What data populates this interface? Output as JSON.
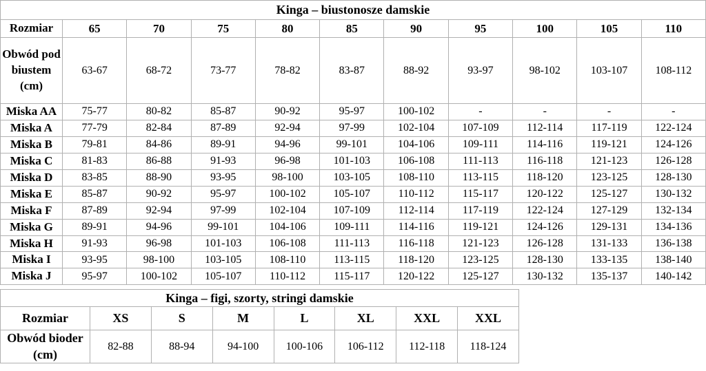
{
  "page": {
    "background_color": "#ffffff",
    "border_color": "#b0b0b0",
    "text_color": "#000000"
  },
  "bras_table": {
    "title": "Kinga – biustonosze damskie",
    "size_row_label": "Rozmiar",
    "sizes": [
      "65",
      "70",
      "75",
      "80",
      "85",
      "90",
      "95",
      "100",
      "105",
      "110"
    ],
    "underbust_label": "Obwód pod biustem (cm)",
    "underbust_values": [
      "63-67",
      "68-72",
      "73-77",
      "78-82",
      "83-87",
      "88-92",
      "93-97",
      "98-102",
      "103-107",
      "108-112"
    ],
    "rows": [
      {
        "label": "Miska AA",
        "values": [
          "75-77",
          "80-82",
          "85-87",
          "90-92",
          "95-97",
          "100-102",
          "-",
          "-",
          "-",
          "-"
        ]
      },
      {
        "label": "Miska A",
        "values": [
          "77-79",
          "82-84",
          "87-89",
          "92-94",
          "97-99",
          "102-104",
          "107-109",
          "112-114",
          "117-119",
          "122-124"
        ]
      },
      {
        "label": "Miska B",
        "values": [
          "79-81",
          "84-86",
          "89-91",
          "94-96",
          "99-101",
          "104-106",
          "109-111",
          "114-116",
          "119-121",
          "124-126"
        ]
      },
      {
        "label": "Miska C",
        "values": [
          "81-83",
          "86-88",
          "91-93",
          "96-98",
          "101-103",
          "106-108",
          "111-113",
          "116-118",
          "121-123",
          "126-128"
        ]
      },
      {
        "label": "Miska D",
        "values": [
          "83-85",
          "88-90",
          "93-95",
          "98-100",
          "103-105",
          "108-110",
          "113-115",
          "118-120",
          "123-125",
          "128-130"
        ]
      },
      {
        "label": "Miska E",
        "values": [
          "85-87",
          "90-92",
          "95-97",
          "100-102",
          "105-107",
          "110-112",
          "115-117",
          "120-122",
          "125-127",
          "130-132"
        ]
      },
      {
        "label": "Miska F",
        "values": [
          "87-89",
          "92-94",
          "97-99",
          "102-104",
          "107-109",
          "112-114",
          "117-119",
          "122-124",
          "127-129",
          "132-134"
        ]
      },
      {
        "label": "Miska G",
        "values": [
          "89-91",
          "94-96",
          "99-101",
          "104-106",
          "109-111",
          "114-116",
          "119-121",
          "124-126",
          "129-131",
          "134-136"
        ]
      },
      {
        "label": "Miska H",
        "values": [
          "91-93",
          "96-98",
          "101-103",
          "106-108",
          "111-113",
          "116-118",
          "121-123",
          "126-128",
          "131-133",
          "136-138"
        ]
      },
      {
        "label": "Miska I",
        "values": [
          "93-95",
          "98-100",
          "103-105",
          "108-110",
          "113-115",
          "118-120",
          "123-125",
          "128-130",
          "133-135",
          "138-140"
        ]
      },
      {
        "label": "Miska J",
        "values": [
          "95-97",
          "100-102",
          "105-107",
          "110-112",
          "115-117",
          "120-122",
          "125-127",
          "130-132",
          "135-137",
          "140-142"
        ]
      }
    ]
  },
  "panties_table": {
    "title": "Kinga – figi, szorty, stringi damskie",
    "size_row_label": "Rozmiar",
    "sizes": [
      "XS",
      "S",
      "M",
      "L",
      "XL",
      "XXL",
      "XXL"
    ],
    "hips_label": "Obwód bioder (cm)",
    "hips_values": [
      "82-88",
      "88-94",
      "94-100",
      "100-106",
      "106-112",
      "112-118",
      "118-124"
    ]
  }
}
